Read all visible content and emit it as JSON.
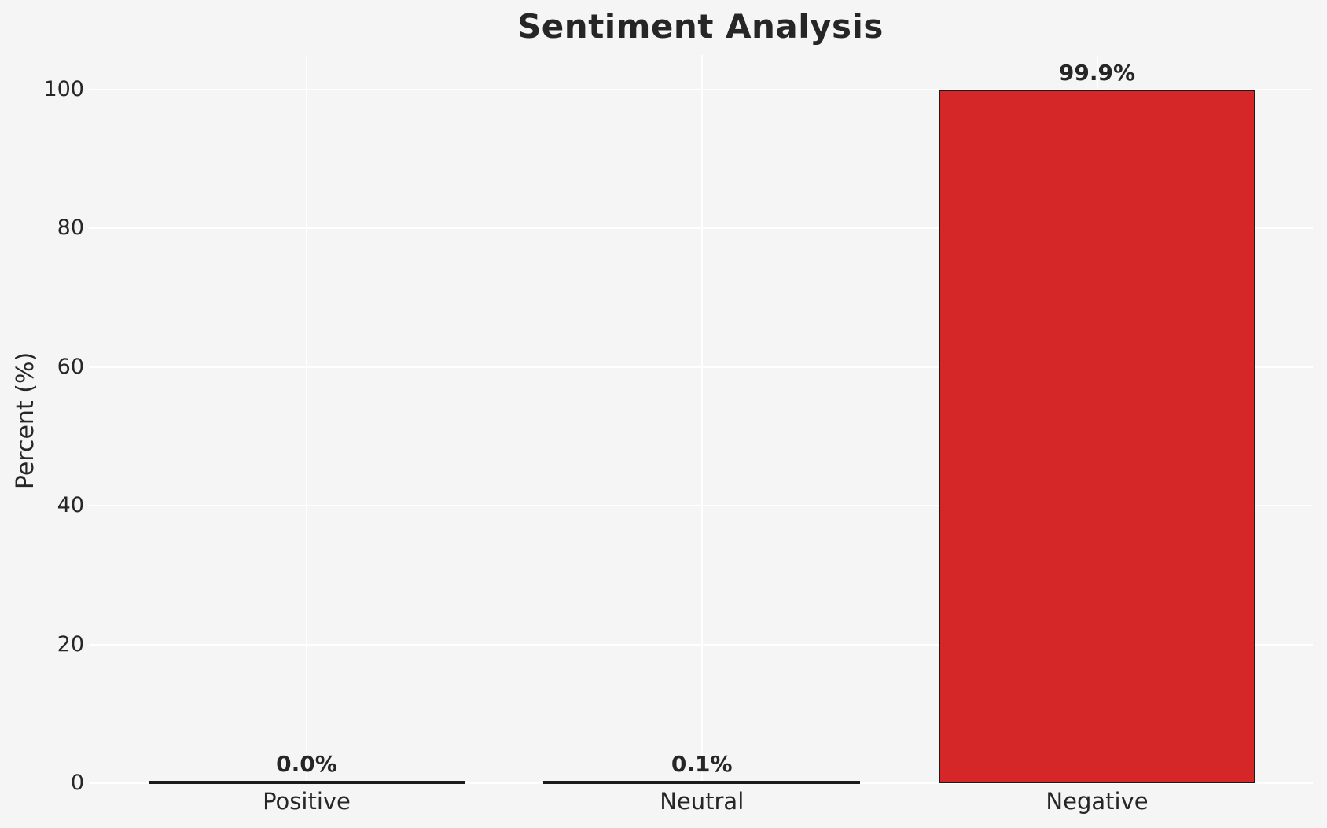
{
  "figure": {
    "background": "#f5f5f6",
    "text_color": "#262626"
  },
  "chart_data": {
    "type": "bar",
    "title": "Sentiment Analysis",
    "xlabel": "",
    "ylabel": "Percent (%)",
    "categories": [
      "Positive",
      "Neutral",
      "Negative"
    ],
    "values": [
      0.0,
      0.1,
      99.9
    ],
    "value_labels": [
      "0.0%",
      "0.1%",
      "99.9%"
    ],
    "ylim": [
      0,
      105
    ],
    "yticks": [
      0,
      20,
      40,
      60,
      80,
      100
    ],
    "grid": true,
    "grid_color": "#ffffff",
    "bar_color": "#d62728",
    "bar_edge_color": "#1a1a1a",
    "legend": "none"
  }
}
